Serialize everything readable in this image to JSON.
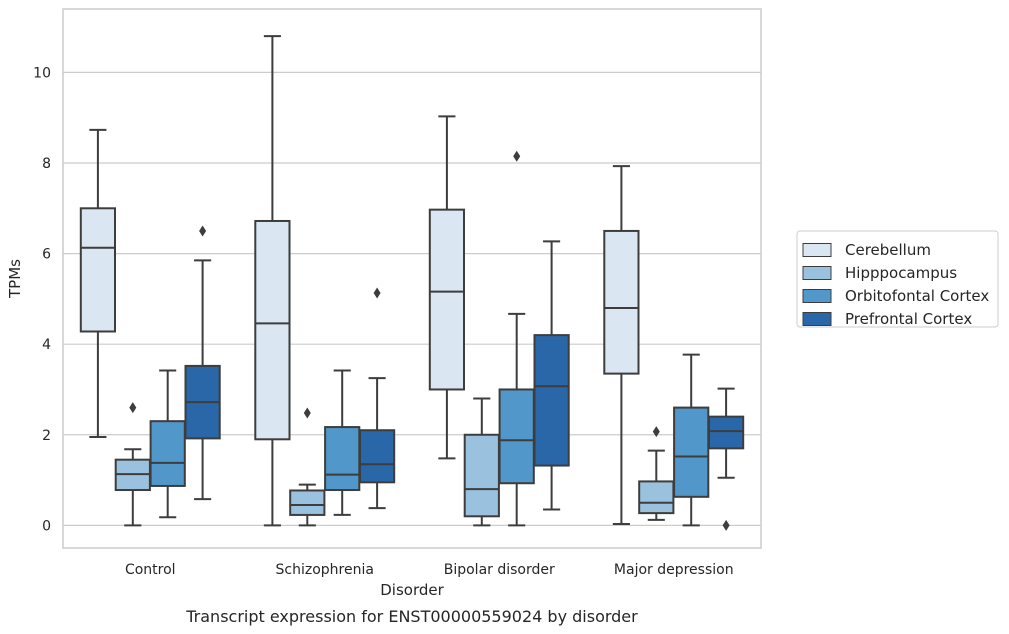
{
  "chart_data": {
    "type": "boxplot",
    "xlabel": "Disorder",
    "ylabel": "TPMs",
    "caption": "Transcript expression for ENST00000559024 by disorder",
    "ylim": [
      -0.5,
      11.4
    ],
    "yticks": [
      0,
      2,
      4,
      6,
      8,
      10
    ],
    "grid": "horizontal",
    "legend_position": "right",
    "categories": [
      "Control",
      "Schizophrenia",
      "Bipolar disorder",
      "Major depression"
    ],
    "series": [
      {
        "name": "Cerebellum",
        "color": "#dae7f3",
        "boxes": [
          {
            "whislo": 1.95,
            "q1": 4.28,
            "med": 6.13,
            "q3": 7.0,
            "whishi": 8.73,
            "fliers": []
          },
          {
            "whislo": 0.0,
            "q1": 1.9,
            "med": 4.46,
            "q3": 6.72,
            "whishi": 10.8,
            "fliers": []
          },
          {
            "whislo": 1.48,
            "q1": 3.0,
            "med": 5.16,
            "q3": 6.97,
            "whishi": 9.03,
            "fliers": []
          },
          {
            "whislo": 0.03,
            "q1": 3.35,
            "med": 4.8,
            "q3": 6.5,
            "whishi": 7.93,
            "fliers": []
          }
        ]
      },
      {
        "name": "Hipppocampus",
        "color": "#9ac2de",
        "boxes": [
          {
            "whislo": 0.0,
            "q1": 0.78,
            "med": 1.13,
            "q3": 1.45,
            "whishi": 1.68,
            "fliers": [
              2.6
            ]
          },
          {
            "whislo": 0.0,
            "q1": 0.23,
            "med": 0.45,
            "q3": 0.77,
            "whishi": 0.9,
            "fliers": [
              2.48
            ]
          },
          {
            "whislo": 0.0,
            "q1": 0.2,
            "med": 0.8,
            "q3": 2.0,
            "whishi": 2.8,
            "fliers": []
          },
          {
            "whislo": 0.12,
            "q1": 0.27,
            "med": 0.5,
            "q3": 0.97,
            "whishi": 1.65,
            "fliers": [
              2.07
            ]
          }
        ]
      },
      {
        "name": "Orbitofontal Cortex",
        "color": "#5197c9",
        "boxes": [
          {
            "whislo": 0.18,
            "q1": 0.87,
            "med": 1.38,
            "q3": 2.3,
            "whishi": 3.42,
            "fliers": []
          },
          {
            "whislo": 0.23,
            "q1": 0.78,
            "med": 1.12,
            "q3": 2.17,
            "whishi": 3.42,
            "fliers": []
          },
          {
            "whislo": 0.0,
            "q1": 0.93,
            "med": 1.88,
            "q3": 3.0,
            "whishi": 4.67,
            "fliers": [
              8.15
            ]
          },
          {
            "whislo": 0.0,
            "q1": 0.63,
            "med": 1.52,
            "q3": 2.6,
            "whishi": 3.77,
            "fliers": []
          }
        ]
      },
      {
        "name": "Prefrontal Cortex",
        "color": "#2967a9",
        "boxes": [
          {
            "whislo": 0.58,
            "q1": 1.92,
            "med": 2.72,
            "q3": 3.52,
            "whishi": 5.85,
            "fliers": [
              6.5
            ]
          },
          {
            "whislo": 0.38,
            "q1": 0.95,
            "med": 1.35,
            "q3": 2.1,
            "whishi": 3.25,
            "fliers": [
              5.13
            ]
          },
          {
            "whislo": 0.35,
            "q1": 1.32,
            "med": 3.07,
            "q3": 4.2,
            "whishi": 6.27,
            "fliers": []
          },
          {
            "whislo": 1.05,
            "q1": 1.7,
            "med": 2.08,
            "q3": 2.4,
            "whishi": 3.02,
            "fliers": [
              0.0
            ]
          }
        ]
      }
    ]
  }
}
